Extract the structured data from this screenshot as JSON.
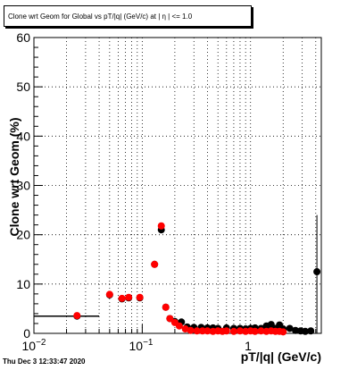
{
  "title": "Clone wrt Geom for Global vs pT/|q| (GeV/c) at | η | <= 1.0",
  "datestamp": "Thu Dec  3 12:33:47 2020",
  "chart_data": {
    "type": "scatter",
    "xlabel": "pT/|q| (GeV/c)",
    "ylabel": "Clone wrt Geom (%)",
    "xscale": "log",
    "xlim": [
      0.01,
      4.5
    ],
    "ylim": [
      0,
      60
    ],
    "grid": true,
    "x_tick_labels": [
      "10^-2",
      "10^-1",
      "1"
    ],
    "y_tick_labels": [
      "0",
      "10",
      "20",
      "30",
      "40",
      "50",
      "60"
    ],
    "colors": {
      "series_1": "#000000",
      "series_2": "#ff0000"
    },
    "series": [
      {
        "color": "#000000",
        "points": [
          {
            "x": 0.025,
            "y": 3.5,
            "xlow": 0.01,
            "xhigh": 0.04
          },
          {
            "x": 0.05,
            "y": 7.8
          },
          {
            "x": 0.065,
            "y": 7.0
          },
          {
            "x": 0.075,
            "y": 7.2
          },
          {
            "x": 0.095,
            "y": 7.2
          },
          {
            "x": 0.13,
            "y": 14.0
          },
          {
            "x": 0.15,
            "y": 21.0
          },
          {
            "x": 0.165,
            "y": 5.3
          },
          {
            "x": 0.18,
            "y": 3.0
          },
          {
            "x": 0.2,
            "y": 2.4
          },
          {
            "x": 0.23,
            "y": 2.3
          },
          {
            "x": 0.26,
            "y": 1.3
          },
          {
            "x": 0.3,
            "y": 1.2
          },
          {
            "x": 0.35,
            "y": 1.2
          },
          {
            "x": 0.4,
            "y": 1.1
          },
          {
            "x": 0.45,
            "y": 1.1
          },
          {
            "x": 0.5,
            "y": 1.0
          },
          {
            "x": 0.6,
            "y": 1.1
          },
          {
            "x": 0.7,
            "y": 1.0
          },
          {
            "x": 0.8,
            "y": 1.0
          },
          {
            "x": 0.9,
            "y": 0.9
          },
          {
            "x": 1.0,
            "y": 1.0
          },
          {
            "x": 1.1,
            "y": 1.1
          },
          {
            "x": 1.25,
            "y": 1.0
          },
          {
            "x": 1.4,
            "y": 1.5
          },
          {
            "x": 1.55,
            "y": 1.8
          },
          {
            "x": 1.7,
            "y": 1.0
          },
          {
            "x": 1.85,
            "y": 1.7
          },
          {
            "x": 2.0,
            "y": 0.9
          },
          {
            "x": 2.3,
            "y": 1.0
          },
          {
            "x": 2.6,
            "y": 0.6
          },
          {
            "x": 2.9,
            "y": 0.5
          },
          {
            "x": 3.2,
            "y": 0.4
          },
          {
            "x": 3.6,
            "y": 0.5
          },
          {
            "x": 4.1,
            "y": 12.5,
            "ylow": 0.0,
            "yhigh": 24.0
          }
        ]
      },
      {
        "color": "#ff0000",
        "points": [
          {
            "x": 0.025,
            "y": 3.6
          },
          {
            "x": 0.05,
            "y": 7.9
          },
          {
            "x": 0.065,
            "y": 7.1
          },
          {
            "x": 0.075,
            "y": 7.3
          },
          {
            "x": 0.095,
            "y": 7.3
          },
          {
            "x": 0.13,
            "y": 14.0
          },
          {
            "x": 0.15,
            "y": 21.8
          },
          {
            "x": 0.165,
            "y": 5.3
          },
          {
            "x": 0.18,
            "y": 3.0
          },
          {
            "x": 0.2,
            "y": 2.2
          },
          {
            "x": 0.22,
            "y": 1.5
          },
          {
            "x": 0.25,
            "y": 0.9
          },
          {
            "x": 0.28,
            "y": 0.6
          },
          {
            "x": 0.32,
            "y": 0.5
          },
          {
            "x": 0.36,
            "y": 0.5
          },
          {
            "x": 0.4,
            "y": 0.5
          },
          {
            "x": 0.45,
            "y": 0.4
          },
          {
            "x": 0.5,
            "y": 0.5
          },
          {
            "x": 0.55,
            "y": 0.4
          },
          {
            "x": 0.6,
            "y": 0.5
          },
          {
            "x": 0.7,
            "y": 0.4
          },
          {
            "x": 0.8,
            "y": 0.5
          },
          {
            "x": 0.9,
            "y": 0.4
          },
          {
            "x": 1.0,
            "y": 0.5
          },
          {
            "x": 1.1,
            "y": 0.4
          },
          {
            "x": 1.25,
            "y": 0.5
          },
          {
            "x": 1.4,
            "y": 0.4
          },
          {
            "x": 1.55,
            "y": 0.5
          },
          {
            "x": 1.7,
            "y": 0.4
          },
          {
            "x": 1.85,
            "y": 0.4
          },
          {
            "x": 2.0,
            "y": 0.3
          }
        ]
      }
    ]
  }
}
